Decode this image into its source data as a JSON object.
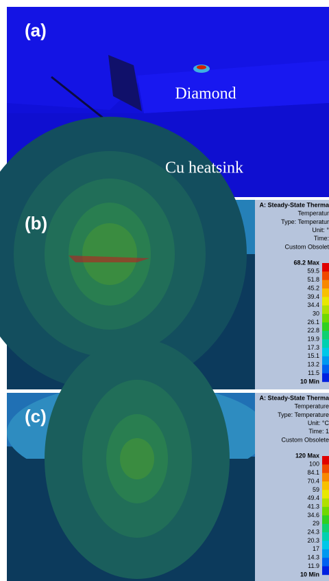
{
  "panels": [
    {
      "label": "(a)",
      "annotations": [
        "Diamond",
        "Cu heatsink"
      ]
    },
    {
      "label": "(b)",
      "legend": {
        "header": [
          "A: Steady-State Therma",
          "Temperatur",
          "Type: Temperatur",
          "Unit: °",
          "Time:",
          "Custom Obsolet"
        ],
        "levels": [
          "68.2 Max",
          "59.5",
          "51.8",
          "45.2",
          "39.4",
          "34.4",
          "30",
          "26.1",
          "22.8",
          "19.9",
          "17.3",
          "15.1",
          "13.2",
          "11.5",
          "10 Min"
        ]
      }
    },
    {
      "label": "(c)",
      "legend": {
        "header": [
          "A: Steady-State Therma",
          "Temperature",
          "Type: Temperature",
          "Unit: °C",
          "Time: 1",
          "Custom Obsolete"
        ],
        "levels": [
          "120 Max",
          "100",
          "84.1",
          "70.4",
          "59",
          "49.4",
          "41.3",
          "34.6",
          "29",
          "24.3",
          "20.3",
          "17",
          "14.3",
          "11.9",
          "10 Min"
        ]
      }
    }
  ]
}
